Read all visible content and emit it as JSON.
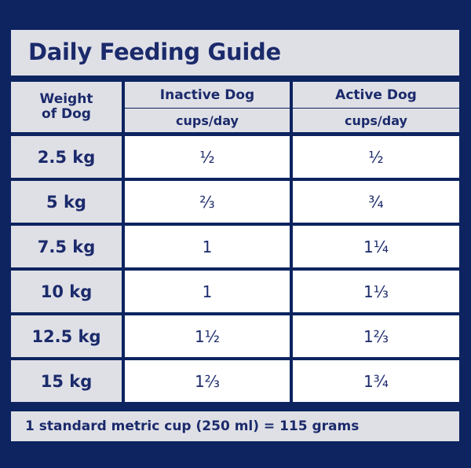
{
  "title": "Daily Feeding Guide",
  "columns": {
    "weight": {
      "line1": "Weight",
      "line2": "of Dog"
    },
    "inactive": {
      "label": "Inactive Dog",
      "unit": "cups/day"
    },
    "active": {
      "label": "Active Dog",
      "unit": "cups/day"
    }
  },
  "rows": [
    {
      "weight": "2.5 kg",
      "inactive": "½",
      "active": "½"
    },
    {
      "weight": "5 kg",
      "inactive": "⅔",
      "active": "¾"
    },
    {
      "weight": "7.5 kg",
      "inactive": "1",
      "active": "1¼"
    },
    {
      "weight": "10 kg",
      "inactive": "1",
      "active": "1⅓"
    },
    {
      "weight": "12.5 kg",
      "inactive": "1½",
      "active": "1⅔"
    },
    {
      "weight": "15 kg",
      "inactive": "1⅔",
      "active": "1¾"
    }
  ],
  "footer": "1 standard metric cup (250 ml) = 115 grams"
}
